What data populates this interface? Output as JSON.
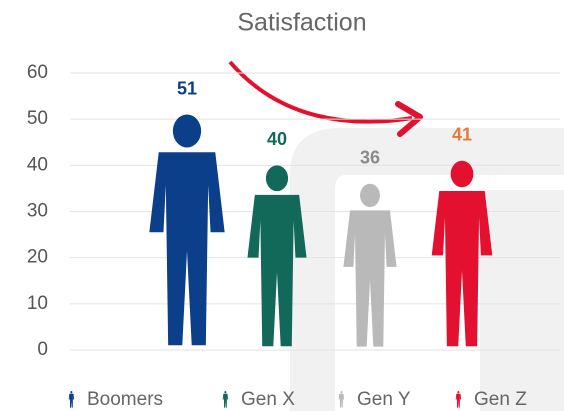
{
  "chart_data": {
    "type": "pictograph",
    "title": "Satisfaction",
    "categories": [
      "Boomers",
      "Gen X",
      "Gen Y",
      "Gen Z"
    ],
    "values": [
      51,
      40,
      36,
      41
    ],
    "colors": [
      "#0b3f8a",
      "#12695a",
      "#b9b9b9",
      "#e3102f"
    ],
    "value_label_colors": [
      "#0b3f8a",
      "#12695a",
      "#8a8a8a",
      "#e37b3c"
    ],
    "ylim": [
      0,
      60
    ],
    "yticks": [
      0,
      10,
      20,
      30,
      40,
      50,
      60
    ],
    "grid": true,
    "legend": "bottom"
  }
}
